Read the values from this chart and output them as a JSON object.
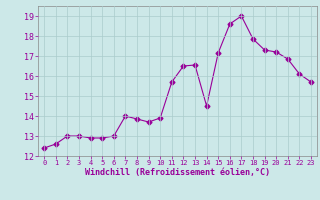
{
  "x": [
    0,
    1,
    2,
    3,
    4,
    5,
    6,
    7,
    8,
    9,
    10,
    11,
    12,
    13,
    14,
    15,
    16,
    17,
    18,
    19,
    20,
    21,
    22,
    23
  ],
  "y": [
    12.4,
    12.6,
    13.0,
    13.0,
    12.9,
    12.9,
    13.0,
    14.0,
    13.85,
    13.7,
    13.9,
    15.7,
    16.5,
    16.55,
    14.5,
    17.15,
    18.6,
    19.0,
    17.85,
    17.3,
    17.2,
    16.85,
    16.1,
    15.7
  ],
  "line_color": "#990099",
  "marker": "D",
  "markersize": 2.5,
  "bg_color": "#cce8e8",
  "grid_color": "#aacccc",
  "xlabel": "Windchill (Refroidissement éolien,°C)",
  "xlabel_color": "#990099",
  "tick_color": "#990099",
  "ylim": [
    12,
    19.5
  ],
  "yticks": [
    12,
    13,
    14,
    15,
    16,
    17,
    18,
    19
  ],
  "xlim": [
    -0.5,
    23.5
  ],
  "xticks": [
    0,
    1,
    2,
    3,
    4,
    5,
    6,
    7,
    8,
    9,
    10,
    11,
    12,
    13,
    14,
    15,
    16,
    17,
    18,
    19,
    20,
    21,
    22,
    23
  ]
}
